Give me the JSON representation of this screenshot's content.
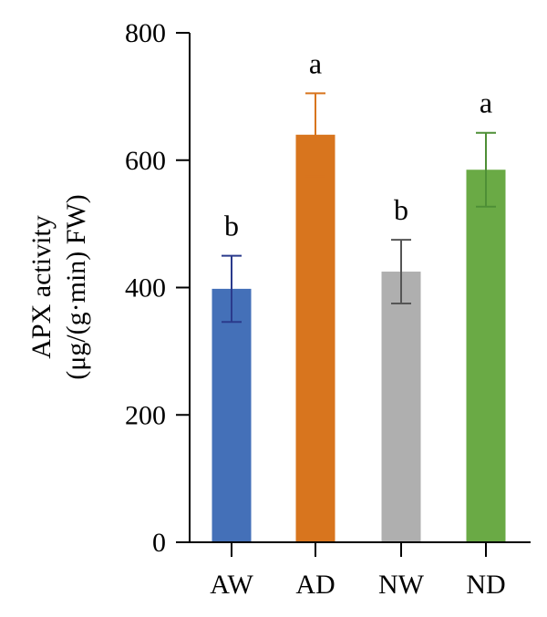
{
  "chart_data": {
    "type": "bar",
    "title": "",
    "xlabel": "",
    "ylabel_lines": [
      "APX activity",
      "(μg/(g·min) FW)"
    ],
    "ylim": [
      0,
      800
    ],
    "yticks": [
      0,
      200,
      400,
      600,
      800
    ],
    "categories": [
      "AW",
      "AD",
      "NW",
      "ND"
    ],
    "values": [
      398,
      640,
      425,
      585
    ],
    "errors": [
      52,
      65,
      50,
      58
    ],
    "significance": [
      "b",
      "a",
      "b",
      "a"
    ],
    "colors": [
      "#4470b8",
      "#d8751e",
      "#afafaf",
      "#6aaa45"
    ],
    "error_colors": [
      "#2a3a8c",
      "#d8751e",
      "#555555",
      "#4e8f36"
    ],
    "grid": false,
    "legend": "none"
  }
}
